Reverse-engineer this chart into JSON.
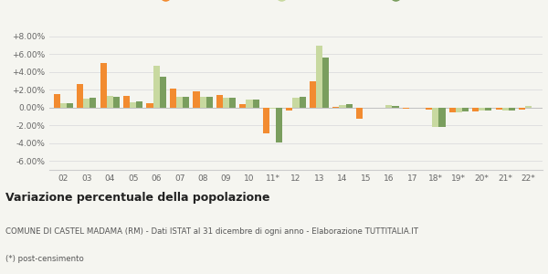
{
  "categories": [
    "02",
    "03",
    "04",
    "05",
    "06",
    "07",
    "08",
    "09",
    "10",
    "11*",
    "12",
    "13",
    "14",
    "15",
    "16",
    "17",
    "18*",
    "19*",
    "20*",
    "21*",
    "22*"
  ],
  "castel_madama": [
    1.5,
    2.6,
    5.0,
    1.3,
    0.5,
    2.1,
    1.8,
    1.4,
    0.4,
    -2.9,
    -0.3,
    2.9,
    0.1,
    -1.3,
    0.0,
    -0.1,
    -0.2,
    -0.5,
    -0.4,
    -0.2,
    -0.2
  ],
  "provincia_rm": [
    0.5,
    1.0,
    1.3,
    0.6,
    4.7,
    1.2,
    1.2,
    1.1,
    0.9,
    -0.1,
    1.1,
    6.9,
    0.3,
    0.0,
    0.3,
    0.0,
    -2.2,
    -0.5,
    -0.3,
    -0.3,
    0.15
  ],
  "lazio": [
    0.5,
    1.1,
    1.2,
    0.7,
    3.5,
    1.2,
    1.2,
    1.1,
    0.9,
    -3.9,
    1.2,
    5.6,
    0.4,
    0.0,
    0.2,
    0.0,
    -2.2,
    -0.4,
    -0.3,
    -0.3,
    0.0
  ],
  "color_castel": "#f28b30",
  "color_provincia": "#c8d9a0",
  "color_lazio": "#7a9e5e",
  "title": "Variazione percentuale della popolazione",
  "subtitle1": "COMUNE DI CASTEL MADAMA (RM) - Dati ISTAT al 31 dicembre di ogni anno - Elaborazione TUTTITALIA.IT",
  "subtitle2": "(*) post-censimento",
  "ylim": [
    -7.0,
    9.0
  ],
  "yticks": [
    -6.0,
    -4.0,
    -2.0,
    0.0,
    2.0,
    4.0,
    6.0,
    8.0
  ],
  "ytick_labels": [
    "-6.00%",
    "-4.00%",
    "-2.00%",
    "0.00%",
    "+2.00%",
    "+4.00%",
    "+6.00%",
    "+8.00%"
  ],
  "background_color": "#f5f5f0",
  "grid_color": "#e0e0e0"
}
